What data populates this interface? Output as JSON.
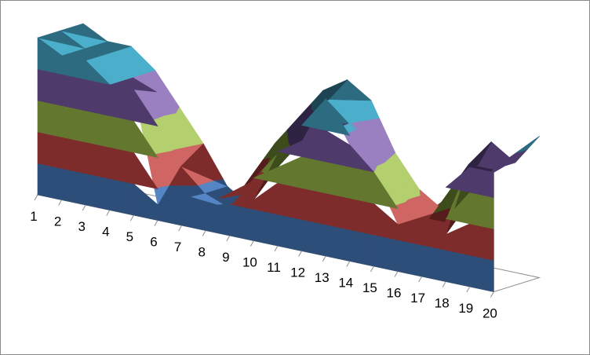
{
  "chart_data": {
    "type": "surface",
    "title": "",
    "xlabel": "",
    "ylabel": "",
    "categories": [
      "1",
      "2",
      "3",
      "4",
      "5",
      "6",
      "7",
      "8",
      "9",
      "10",
      "11",
      "12",
      "13",
      "14",
      "15",
      "16",
      "17",
      "18",
      "19",
      "20"
    ],
    "series": [
      {
        "values": [
          5.0,
          4.6,
          4.6,
          4.0,
          4.0,
          0.5,
          1.0,
          0.8,
          1.0,
          1.3,
          2.5,
          3.5,
          5.0,
          3.7,
          3.0,
          1.5,
          1.5,
          1.5,
          3.8,
          3.8
        ]
      },
      {
        "values": [
          5.0,
          4.6,
          4.6,
          4.0,
          3.7,
          1.5,
          0.8,
          0.5,
          1.5,
          2.5,
          3.5,
          4.6,
          4.0,
          3.5,
          2.5,
          1.5,
          1.5,
          3.5,
          3.5,
          4.0
        ]
      },
      {
        "values": [
          5.0,
          4.6,
          4.6,
          4.0,
          3.0,
          2.0,
          0.8,
          0.3,
          2.5,
          3.5,
          4.5,
          5.0,
          4.5,
          3.0,
          2.0,
          1.5,
          2.5,
          4.0,
          3.5,
          4.5
        ]
      }
    ],
    "bands": [
      0,
      1,
      2,
      3,
      4,
      5
    ],
    "band_colors": {
      "front_faces": [
        "#2d4e78",
        "#7e2c2b",
        "#63772f",
        "#4e3b6b",
        "#2d6b80"
      ],
      "lit_faces": [
        "#5585c4",
        "#cf6663",
        "#b3cf6e",
        "#9a80c0",
        "#4bafcb"
      ],
      "dark_faces": [
        "#1f3653",
        "#541d1c",
        "#3e4c1c",
        "#2f2343",
        "#1c4452"
      ]
    },
    "floor_color": "#ffffff",
    "axis_color": "#8c8c8c",
    "grid": false,
    "legend": "none"
  }
}
